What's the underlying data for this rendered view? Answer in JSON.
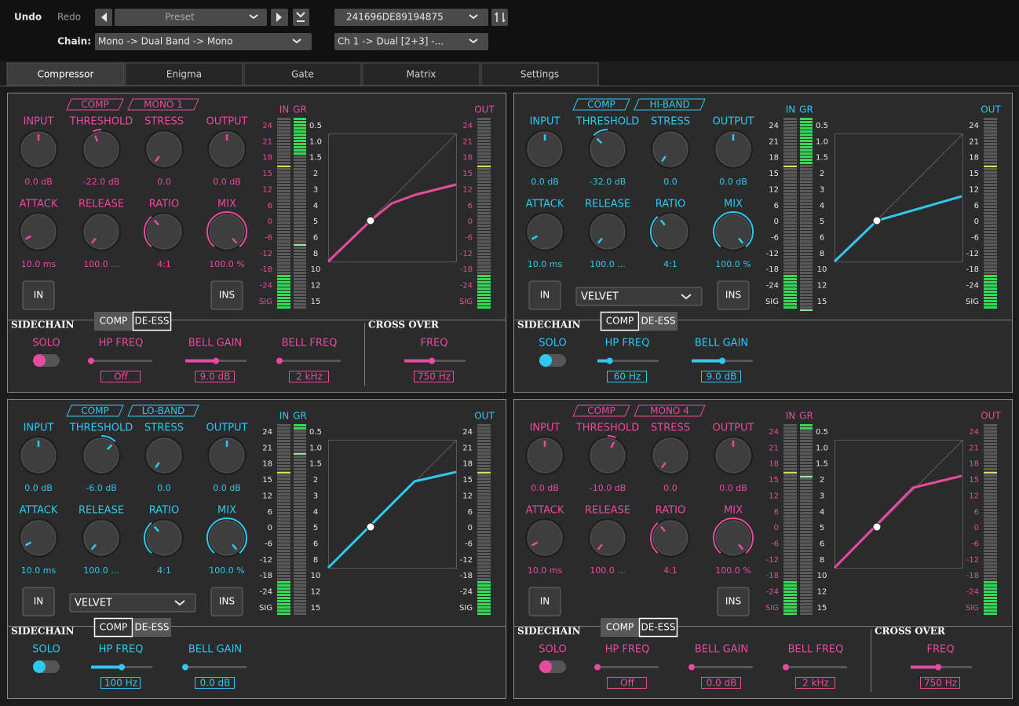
{
  "toolbar": {
    "undo": "Undo",
    "redo": "Redo",
    "preset": "Preset",
    "device": "241696DE89194875",
    "chain_label": "Chain:",
    "chain": "Mono -> Dual Band -> Mono",
    "route": "Ch 1 -> Dual [2+3] -..."
  },
  "tabs": [
    "Compressor",
    "Enigma",
    "Gate",
    "Matrix",
    "Settings"
  ],
  "active_tab": 0,
  "meter": {
    "in": "IN",
    "gr": "GR",
    "out": "OUT",
    "in_scale": [
      "24",
      "21",
      "18",
      "15",
      "12",
      "6",
      "0",
      "-6",
      "-12",
      "-18",
      "-24",
      "SIG"
    ],
    "gr_scale": [
      "0.5",
      "1.0",
      "1.5",
      "2",
      "3",
      "4",
      "5",
      "6",
      "8",
      "10",
      "12",
      "15"
    ]
  },
  "panels": [
    {
      "color": "#e84aa0",
      "scale_color": "#e84aa0",
      "mode": "COMP",
      "name": "MONO 1",
      "knobs": [
        {
          "label": "INPUT",
          "value": "0.0 dB"
        },
        {
          "label": "THRESHOLD",
          "value": "-22.0 dB"
        },
        {
          "label": "STRESS",
          "value": "0.0"
        },
        {
          "label": "OUTPUT",
          "value": "0.0 dB"
        },
        {
          "label": "ATTACK",
          "value": "10.0 ms"
        },
        {
          "label": "RELEASE",
          "value": "100.0 ..."
        },
        {
          "label": "RATIO",
          "value": "4:1"
        },
        {
          "label": "MIX",
          "value": "100.0 %"
        }
      ],
      "in_button": "IN",
      "ins_button": "INS",
      "sidechain": {
        "title": "SIDECHAIN",
        "toggle": [
          "COMP",
          "DE-ESS"
        ],
        "active": 1,
        "solo": "SOLO",
        "params": [
          {
            "label": "HP FREQ",
            "value": "Off"
          },
          {
            "label": "BELL GAIN",
            "value": "9.0 dB"
          },
          {
            "label": "BELL FREQ",
            "value": "2 kHz"
          }
        ]
      },
      "crossover": {
        "title": "CROSS OVER",
        "label": "FREQ",
        "value": "750 Hz"
      }
    },
    {
      "color": "#2ec8f0",
      "scale_color": "#e6e6e6",
      "mode": "COMP",
      "name": "HI-BAND",
      "knobs": [
        {
          "label": "INPUT",
          "value": "0.0 dB"
        },
        {
          "label": "THRESHOLD",
          "value": "-32.0 dB"
        },
        {
          "label": "STRESS",
          "value": "0.0"
        },
        {
          "label": "OUTPUT",
          "value": "0.0 dB"
        },
        {
          "label": "ATTACK",
          "value": "10.0 ms"
        },
        {
          "label": "RELEASE",
          "value": "100.0 ..."
        },
        {
          "label": "RATIO",
          "value": "4:1"
        },
        {
          "label": "MIX",
          "value": "100.0 %"
        }
      ],
      "in_button": "IN",
      "ins_button": "INS",
      "dropdown": "VELVET",
      "sidechain": {
        "title": "SIDECHAIN",
        "toggle": [
          "COMP",
          "DE-ESS"
        ],
        "active": 0,
        "solo": "SOLO",
        "params": [
          {
            "label": "HP FREQ",
            "value": "60 Hz"
          },
          {
            "label": "BELL GAIN",
            "value": "9.0 dB"
          }
        ]
      }
    },
    {
      "color": "#2ec8f0",
      "scale_color": "#e6e6e6",
      "mode": "COMP",
      "name": "LO-BAND",
      "knobs": [
        {
          "label": "INPUT",
          "value": "0.0 dB"
        },
        {
          "label": "THRESHOLD",
          "value": "-6.0 dB"
        },
        {
          "label": "STRESS",
          "value": "0.0"
        },
        {
          "label": "OUTPUT",
          "value": "0.0 dB"
        },
        {
          "label": "ATTACK",
          "value": "10.0 ms"
        },
        {
          "label": "RELEASE",
          "value": "100.0 ..."
        },
        {
          "label": "RATIO",
          "value": "4:1"
        },
        {
          "label": "MIX",
          "value": "100.0 %"
        }
      ],
      "in_button": "IN",
      "ins_button": "INS",
      "dropdown": "VELVET",
      "sidechain": {
        "title": "SIDECHAIN",
        "toggle": [
          "COMP",
          "DE-ESS"
        ],
        "active": 0,
        "solo": "SOLO",
        "params": [
          {
            "label": "HP FREQ",
            "value": "100 Hz"
          },
          {
            "label": "BELL GAIN",
            "value": "0.0 dB"
          }
        ]
      }
    },
    {
      "color": "#e84aa0",
      "scale_color": "#e84aa0",
      "mode": "COMP",
      "name": "MONO 4",
      "knobs": [
        {
          "label": "INPUT",
          "value": "0.0 dB"
        },
        {
          "label": "THRESHOLD",
          "value": "-10.0 dB"
        },
        {
          "label": "STRESS",
          "value": "0.0"
        },
        {
          "label": "OUTPUT",
          "value": "0.0 dB"
        },
        {
          "label": "ATTACK",
          "value": "10.0 ms"
        },
        {
          "label": "RELEASE",
          "value": "100.0 ..."
        },
        {
          "label": "RATIO",
          "value": "4:1"
        },
        {
          "label": "MIX",
          "value": "100.0 %"
        }
      ],
      "in_button": "IN",
      "ins_button": "INS",
      "sidechain": {
        "title": "SIDECHAIN",
        "toggle": [
          "COMP",
          "DE-ESS"
        ],
        "active": 1,
        "solo": "SOLO",
        "params": [
          {
            "label": "HP FREQ",
            "value": "Off"
          },
          {
            "label": "BELL GAIN",
            "value": "0.0 dB"
          },
          {
            "label": "BELL FREQ",
            "value": "2 kHz"
          }
        ]
      },
      "crossover": {
        "title": "CROSS OVER",
        "label": "FREQ",
        "value": "750 Hz"
      }
    }
  ]
}
